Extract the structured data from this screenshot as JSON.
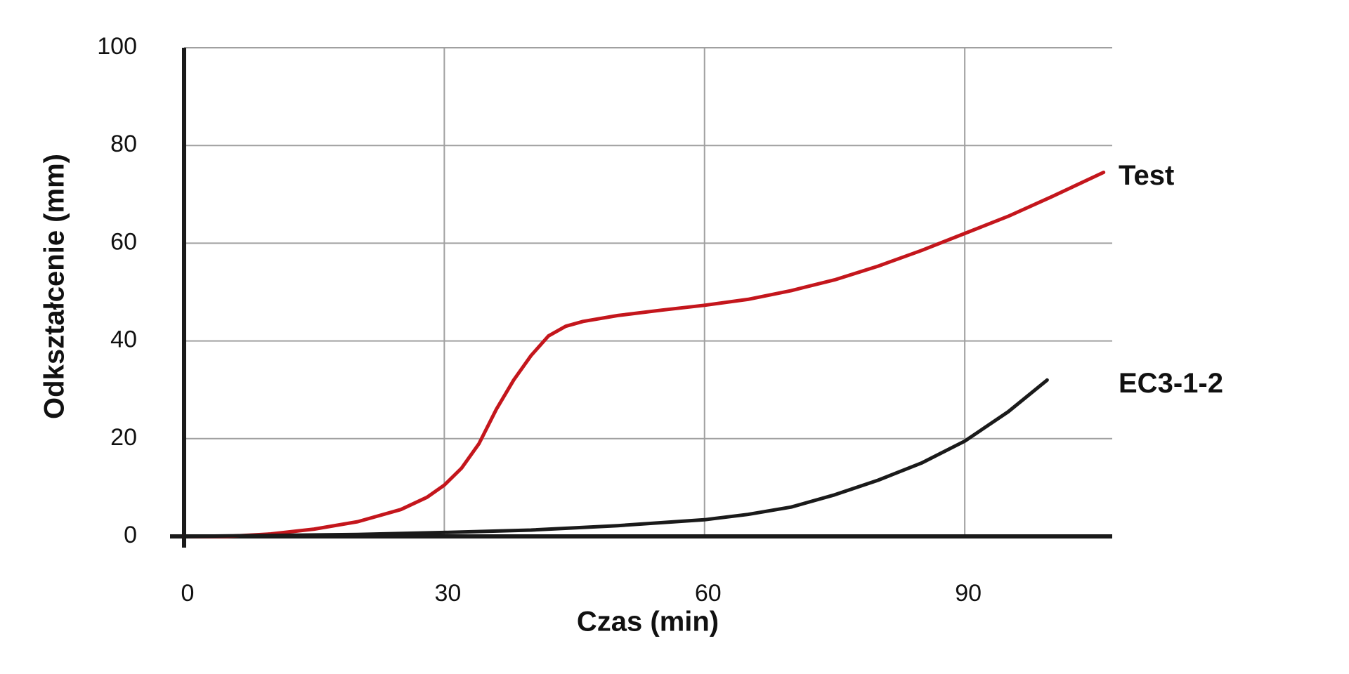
{
  "chart_data": {
    "type": "line",
    "xlabel": "Czas (min)",
    "ylabel": "Odkształcenie (mm)",
    "xlim": [
      0,
      107
    ],
    "ylim": [
      0,
      100
    ],
    "xticks": [
      0,
      30,
      60,
      90
    ],
    "yticks": [
      0,
      20,
      40,
      60,
      80,
      100
    ],
    "grid": true,
    "series": [
      {
        "name": "Test",
        "color": "#c4161c",
        "x": [
          0,
          5,
          10,
          15,
          20,
          25,
          28,
          30,
          32,
          34,
          36,
          38,
          40,
          42,
          44,
          46,
          50,
          55,
          60,
          65,
          70,
          75,
          80,
          85,
          90,
          95,
          100,
          106
        ],
        "values": [
          0,
          0,
          0.5,
          1.5,
          3,
          5.5,
          8,
          10.5,
          14,
          19,
          26,
          32,
          37,
          41,
          43,
          44,
          45.2,
          46.3,
          47.3,
          48.5,
          50.3,
          52.5,
          55.3,
          58.5,
          62,
          65.5,
          69.5,
          74.5
        ]
      },
      {
        "name": "EC3-1-2",
        "color": "#1a1a1a",
        "x": [
          0,
          10,
          20,
          30,
          40,
          50,
          60,
          65,
          70,
          75,
          80,
          85,
          90,
          95,
          99.5
        ],
        "values": [
          0,
          0.2,
          0.4,
          0.8,
          1.3,
          2.2,
          3.4,
          4.5,
          6,
          8.5,
          11.5,
          15,
          19.5,
          25.5,
          32
        ]
      }
    ]
  }
}
